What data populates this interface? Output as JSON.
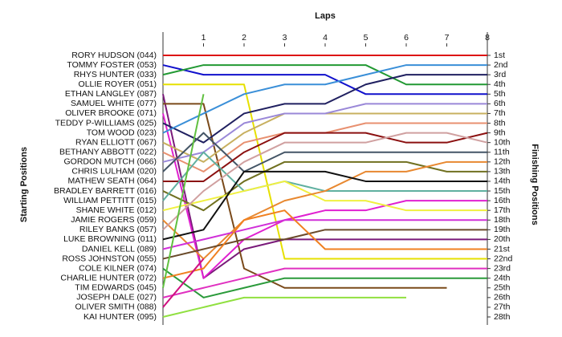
{
  "chart_data": {
    "type": "lap",
    "title": "Laps",
    "y_label": "Starting Positions",
    "y2_label": "Finishing Positions",
    "x": [
      0,
      1,
      2,
      3,
      4,
      5,
      6,
      7,
      8
    ],
    "xlim": [
      0,
      8
    ],
    "xticks": [
      1,
      2,
      3,
      4,
      5,
      6,
      7,
      8
    ],
    "ylim": [
      1,
      28
    ],
    "y_inverted": true,
    "yticks": [
      {
        "value": 1,
        "label": "1st"
      },
      {
        "value": 2,
        "label": "2nd"
      },
      {
        "value": 3,
        "label": "3rd"
      },
      {
        "value": 4,
        "label": "4th"
      },
      {
        "value": 5,
        "label": "5th"
      },
      {
        "value": 6,
        "label": "6th"
      },
      {
        "value": 7,
        "label": "7th"
      },
      {
        "value": 8,
        "label": "8th"
      },
      {
        "value": 9,
        "label": "9th"
      },
      {
        "value": 10,
        "label": "10th"
      },
      {
        "value": 11,
        "label": "11th"
      },
      {
        "value": 12,
        "label": "12th"
      },
      {
        "value": 13,
        "label": "13th"
      },
      {
        "value": 14,
        "label": "14th"
      },
      {
        "value": 15,
        "label": "15th"
      },
      {
        "value": 16,
        "label": "16th"
      },
      {
        "value": 17,
        "label": "17th"
      },
      {
        "value": 18,
        "label": "18th"
      },
      {
        "value": 19,
        "label": "19th"
      },
      {
        "value": 20,
        "label": "20th"
      },
      {
        "value": 21,
        "label": "21st"
      },
      {
        "value": 22,
        "label": "22nd"
      },
      {
        "value": 23,
        "label": "23rd"
      },
      {
        "value": 24,
        "label": "24th"
      },
      {
        "value": 25,
        "label": "25th"
      },
      {
        "value": 26,
        "label": "26th"
      },
      {
        "value": 27,
        "label": "27th"
      },
      {
        "value": 28,
        "label": "28th"
      }
    ],
    "series": [
      {
        "name": "RORY HUDSON (044)",
        "color": "#dd1111",
        "values": [
          1,
          1,
          1,
          1,
          1,
          1,
          1,
          1,
          1
        ]
      },
      {
        "name": "TOMMY FOSTER (053)",
        "color": "#1010cc",
        "values": [
          2,
          3,
          3,
          3,
          3,
          5,
          5,
          5,
          5
        ]
      },
      {
        "name": "RHYS HUNTER (033)",
        "color": "#229933",
        "values": [
          3,
          2,
          2,
          2,
          2,
          2,
          4,
          4,
          4
        ]
      },
      {
        "name": "OLLIE ROYER (051)",
        "color": "#e6e000",
        "values": [
          4,
          4,
          4,
          22,
          22,
          22,
          22,
          22,
          22
        ]
      },
      {
        "name": "ETHAN LANGLEY (087)",
        "color": "#7a1a7a",
        "values": [
          5,
          24,
          21,
          20,
          20,
          20,
          20,
          20,
          20
        ]
      },
      {
        "name": "SAMUEL WHITE (077)",
        "color": "#7a4a1a",
        "values": [
          6,
          6,
          23,
          25,
          25,
          25,
          25,
          25,
          null
        ]
      },
      {
        "name": "OLIVER BROOKE (071)",
        "color": "#e020d0",
        "values": [
          7,
          24,
          20,
          18,
          17,
          17,
          16,
          16,
          16
        ]
      },
      {
        "name": "TEDDY P-WILLIAMS (025)",
        "color": "#202060",
        "values": [
          8,
          10,
          7,
          6,
          6,
          4,
          3,
          3,
          3
        ]
      },
      {
        "name": "TOM WOOD (023)",
        "color": "#3a8fd8",
        "values": [
          9,
          7,
          5,
          4,
          4,
          3,
          2,
          2,
          2
        ]
      },
      {
        "name": "RYAN ELLIOTT (067)",
        "color": "#c8b060",
        "values": [
          10,
          12,
          9,
          7,
          7,
          7,
          7,
          7,
          7
        ]
      },
      {
        "name": "BETHANY ABBOTT (022)",
        "color": "#e89070",
        "values": [
          11,
          13,
          10,
          9,
          9,
          8,
          8,
          8,
          8
        ]
      },
      {
        "name": "GORDON MUTCH (066)",
        "color": "#9a88d8",
        "values": [
          12,
          11,
          8,
          7,
          7,
          6,
          6,
          6,
          6
        ]
      },
      {
        "name": "CHRIS LULHAM (020)",
        "color": "#445566",
        "values": [
          13,
          9,
          13,
          11,
          11,
          11,
          11,
          11,
          11
        ]
      },
      {
        "name": "MATHEW SEATH (064)",
        "color": "#8b1010",
        "values": [
          14,
          14,
          11,
          9,
          9,
          9,
          10,
          10,
          9
        ]
      },
      {
        "name": "BRADLEY BARRETT (016)",
        "color": "#707020",
        "values": [
          15,
          17,
          14,
          12,
          12,
          12,
          12,
          13,
          13
        ]
      },
      {
        "name": "WILLIAM PETTITT (015)",
        "color": "#60b0a0",
        "values": [
          16,
          11,
          15,
          14,
          15,
          15,
          15,
          15,
          15
        ]
      },
      {
        "name": "SHANE WHITE (012)",
        "color": "#f0f040",
        "values": [
          17,
          16,
          15,
          14,
          16,
          16,
          17,
          17,
          17
        ]
      },
      {
        "name": "JAMIE ROGERS (059)",
        "color": "#e88830",
        "values": [
          18,
          22,
          18,
          16,
          15,
          13,
          13,
          12,
          12
        ]
      },
      {
        "name": "RILEY BANKS (057)",
        "color": "#d0a0a0",
        "values": [
          19,
          15,
          12,
          10,
          10,
          10,
          9,
          9,
          10
        ]
      },
      {
        "name": "LUKE BROWNING (011)",
        "color": "#111111",
        "values": [
          20,
          19,
          13,
          13,
          13,
          14,
          14,
          14,
          14
        ]
      },
      {
        "name": "DANIEL KELL (089)",
        "color": "#d030d8",
        "values": [
          21,
          20,
          19,
          18,
          18,
          18,
          18,
          18,
          18
        ]
      },
      {
        "name": "ROSS JOHNSTON (055)",
        "color": "#6a4a2a",
        "values": [
          22,
          21,
          20,
          20,
          19,
          19,
          19,
          19,
          19
        ]
      },
      {
        "name": "COLE KILNER (074)",
        "color": "#2a9a3a",
        "values": [
          23,
          26,
          25,
          24,
          24,
          24,
          24,
          24,
          24
        ]
      },
      {
        "name": "CHARLIE HUNTER (072)",
        "color": "#f08020",
        "values": [
          24,
          23,
          18,
          17,
          21,
          21,
          21,
          21,
          21
        ]
      },
      {
        "name": "TIM EDWARDS (045)",
        "color": "#60c040",
        "values": [
          25,
          5,
          null,
          null,
          null,
          null,
          null,
          null,
          null
        ]
      },
      {
        "name": "JOSEPH DALE (027)",
        "color": "#e030c0",
        "values": [
          26,
          25,
          24,
          23,
          23,
          23,
          23,
          23,
          23
        ]
      },
      {
        "name": "OLIVER SMITH (088)",
        "color": "#d01080",
        "values": [
          27,
          22,
          null,
          null,
          null,
          null,
          null,
          null,
          null
        ]
      },
      {
        "name": "KAI HUNTER (095)",
        "color": "#90e040",
        "values": [
          28,
          27,
          26,
          26,
          26,
          26,
          26,
          null,
          null
        ]
      }
    ]
  }
}
